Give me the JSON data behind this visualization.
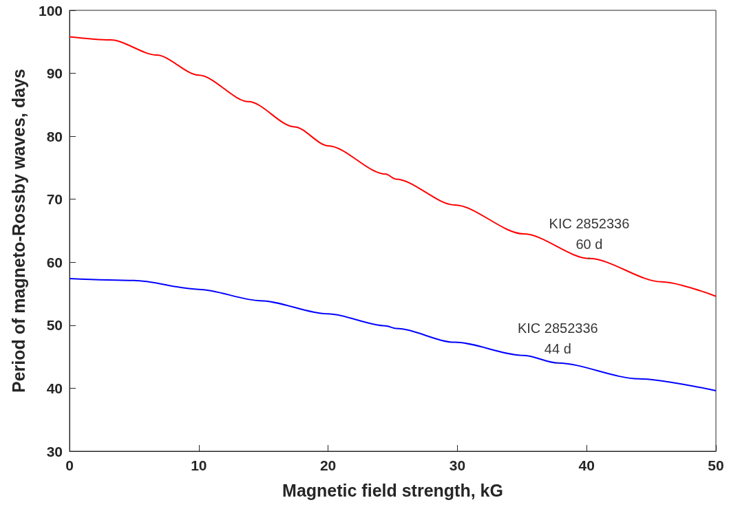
{
  "chart_data": {
    "type": "line",
    "xlabel": "Magnetic field strength, kG",
    "ylabel": "Period of magneto-Rossby waves, days",
    "xlim": [
      0,
      50
    ],
    "xticks": [
      0,
      10,
      20,
      30,
      40,
      50
    ],
    "ylim": [
      30,
      100
    ],
    "yticks": [
      30,
      40,
      50,
      60,
      70,
      80,
      90,
      100
    ],
    "grid": false,
    "marker": "none",
    "line_style": "solid",
    "series": [
      {
        "color": "#ff0000",
        "x": [
          0,
          3.19,
          6.74,
          10,
          13.86,
          17.4,
          20,
          24.45,
          25.25,
          29.79,
          35.13,
          40.2,
          45.8,
          50
        ],
        "values": [
          95.8,
          95.3,
          92.9,
          89.7,
          85.5,
          81.5,
          78.5,
          74.0,
          73.2,
          69.1,
          64.5,
          60.6,
          56.9,
          54.6
        ]
      },
      {
        "color": "#0000ff",
        "x": [
          0,
          4.97,
          10,
          14.76,
          20,
          24.45,
          25.25,
          29.79,
          35.13,
          37.77,
          44.04,
          50
        ],
        "values": [
          57.4,
          57.1,
          55.7,
          53.9,
          51.8,
          49.9,
          49.5,
          47.3,
          45.2,
          44.0,
          41.5,
          39.6
        ]
      }
    ],
    "annotations": [
      {
        "text": "KIC 2852336\n60 d",
        "x": 40.2,
        "y": 60.6
      },
      {
        "text": "KIC 2852336\n44 d",
        "x": 37.77,
        "y": 44.0
      }
    ]
  }
}
